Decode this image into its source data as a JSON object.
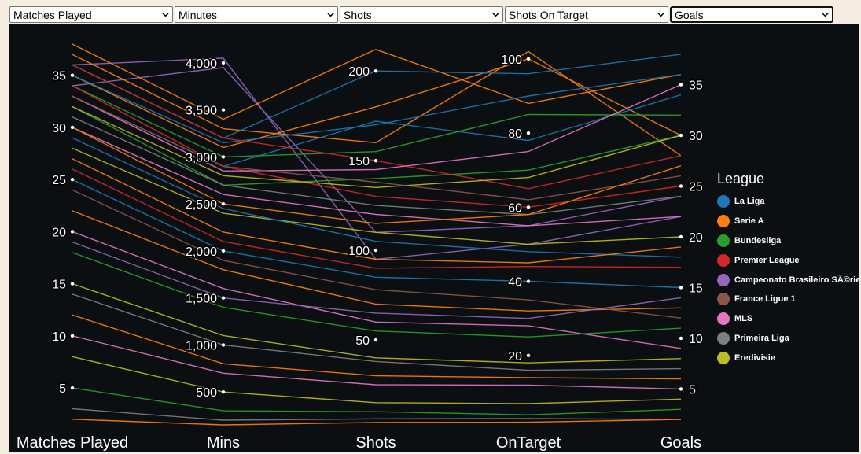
{
  "controls": {
    "selects": [
      {
        "value": "Matches Played"
      },
      {
        "value": "Minutes"
      },
      {
        "value": "Shots"
      },
      {
        "value": "Shots On Target"
      },
      {
        "value": "Goals"
      }
    ]
  },
  "legend": {
    "title": "League",
    "items": [
      {
        "label": "La Liga",
        "color": "#1f77b4"
      },
      {
        "label": "Serie A",
        "color": "#ff7f0e"
      },
      {
        "label": "Bundesliga",
        "color": "#2ca02c"
      },
      {
        "label": "Premier League",
        "color": "#d62728"
      },
      {
        "label": "Campeonato Brasileiro SÃ©rie A",
        "color": "#9467bd"
      },
      {
        "label": "France Ligue 1",
        "color": "#8c564b"
      },
      {
        "label": "MLS",
        "color": "#e377c2"
      },
      {
        "label": "Primeira Liga",
        "color": "#7f7f7f"
      },
      {
        "label": "Eredivisie",
        "color": "#bcbd22"
      }
    ]
  },
  "chart_data": {
    "type": "parallel_coordinates",
    "dimensions": [
      {
        "key": "matches",
        "label": "Matches Played",
        "range": [
          1,
          38
        ],
        "ticks": [
          5,
          10,
          15,
          20,
          25,
          30,
          35
        ],
        "tick_labels": [
          "5",
          "10",
          "15",
          "20",
          "25",
          "30",
          "35"
        ]
      },
      {
        "key": "minutes",
        "label": "Mins",
        "range": [
          100,
          4200
        ],
        "ticks": [
          500,
          1000,
          1500,
          2000,
          2500,
          3000,
          3500,
          4000
        ],
        "tick_labels": [
          "500",
          "1,000",
          "1,500",
          "2,000",
          "2,500",
          "3,000",
          "3,500",
          "4,000"
        ]
      },
      {
        "key": "shots",
        "label": "Shots",
        "range": [
          0,
          215
        ],
        "ticks": [
          50,
          100,
          150,
          200
        ],
        "tick_labels": [
          "50",
          "100",
          "150",
          "200"
        ]
      },
      {
        "key": "on_target",
        "label": "OnTarget",
        "range": [
          0,
          104
        ],
        "ticks": [
          20,
          40,
          60,
          80,
          100
        ],
        "tick_labels": [
          "20",
          "40",
          "60",
          "80",
          "100"
        ]
      },
      {
        "key": "goals",
        "label": "Goals",
        "range": [
          1,
          39
        ],
        "ticks": [
          5,
          10,
          15,
          20,
          25,
          30,
          35
        ],
        "tick_labels": [
          "5",
          "10",
          "15",
          "20",
          "25",
          "30",
          "35"
        ]
      }
    ],
    "series": [
      {
        "league": "Campeonato Brasileiro SÃ©rie A",
        "values": [
          36,
          4050,
          95,
          50,
          22
        ]
      },
      {
        "league": "Campeonato Brasileiro SÃ©rie A",
        "values": [
          34,
          3950,
          110,
          55,
          24
        ]
      },
      {
        "league": "Serie A",
        "values": [
          38,
          3400,
          212,
          88,
          36
        ]
      },
      {
        "league": "Serie A",
        "values": [
          35,
          3100,
          180,
          100,
          30
        ]
      },
      {
        "league": "Serie A",
        "values": [
          37,
          3300,
          160,
          102,
          28
        ]
      },
      {
        "league": "La Liga",
        "values": [
          36,
          3200,
          200,
          96,
          38
        ]
      },
      {
        "league": "La Liga",
        "values": [
          35,
          3150,
          170,
          90,
          36
        ]
      },
      {
        "league": "La Liga",
        "values": [
          33,
          2900,
          172,
          78,
          34
        ]
      },
      {
        "league": "Bundesliga",
        "values": [
          34,
          3000,
          155,
          85,
          32
        ]
      },
      {
        "league": "Bundesliga",
        "values": [
          32,
          2700,
          140,
          70,
          30
        ]
      },
      {
        "league": "Premier League",
        "values": [
          36,
          3200,
          150,
          65,
          28
        ]
      },
      {
        "league": "Premier League",
        "values": [
          34,
          2900,
          130,
          60,
          25
        ]
      },
      {
        "league": "MLS",
        "values": [
          33,
          2850,
          145,
          75,
          35
        ]
      },
      {
        "league": "MLS",
        "values": [
          30,
          2600,
          120,
          55,
          22
        ]
      },
      {
        "league": "Eredivisie",
        "values": [
          32,
          2800,
          135,
          68,
          30
        ]
      },
      {
        "league": "Eredivisie",
        "values": [
          28,
          2400,
          110,
          50,
          20
        ]
      },
      {
        "league": "Primeira Liga",
        "values": [
          31,
          2700,
          125,
          58,
          24
        ]
      },
      {
        "league": "France Ligue 1",
        "values": [
          33,
          2900,
          138,
          62,
          26
        ]
      },
      {
        "league": "Serie A",
        "values": [
          30,
          2500,
          115,
          58,
          27
        ]
      },
      {
        "league": "La Liga",
        "values": [
          29,
          2450,
          105,
          48,
          18
        ]
      },
      {
        "league": "Serie A",
        "values": [
          27,
          2200,
          95,
          45,
          19
        ]
      },
      {
        "league": "La Liga",
        "values": [
          25,
          2000,
          85,
          40,
          15
        ]
      },
      {
        "league": "Serie A",
        "values": [
          22,
          1800,
          70,
          32,
          13
        ]
      },
      {
        "league": "MLS",
        "values": [
          20,
          1600,
          60,
          28,
          9
        ]
      },
      {
        "league": "Bundesliga",
        "values": [
          18,
          1400,
          55,
          25,
          11
        ]
      },
      {
        "league": "Eredivisie",
        "values": [
          15,
          1100,
          40,
          18,
          8
        ]
      },
      {
        "league": "Serie A",
        "values": [
          12,
          800,
          30,
          14,
          6
        ]
      },
      {
        "league": "MLS",
        "values": [
          10,
          700,
          25,
          12,
          5
        ]
      },
      {
        "league": "Eredivisie",
        "values": [
          8,
          500,
          15,
          7,
          4
        ]
      },
      {
        "league": "Bundesliga",
        "values": [
          5,
          300,
          10,
          4,
          3
        ]
      },
      {
        "league": "Primeira Liga",
        "values": [
          3,
          200,
          6,
          3,
          2
        ]
      },
      {
        "league": "Serie A",
        "values": [
          2,
          150,
          4,
          2,
          2
        ]
      },
      {
        "league": "Premier League",
        "values": [
          26,
          2100,
          90,
          44,
          17
        ]
      },
      {
        "league": "France Ligue 1",
        "values": [
          24,
          1900,
          78,
          35,
          12
        ]
      },
      {
        "league": "Campeonato Brasileiro SÃ©rie A",
        "values": [
          19,
          1500,
          65,
          30,
          14
        ]
      },
      {
        "league": "Primeira Liga",
        "values": [
          14,
          1000,
          38,
          16,
          7
        ]
      }
    ]
  }
}
